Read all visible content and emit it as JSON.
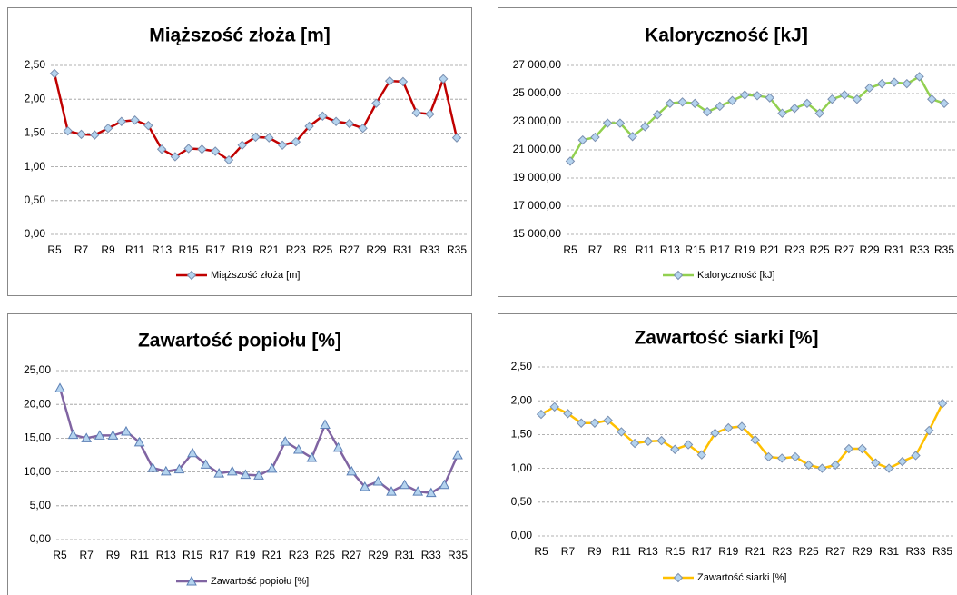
{
  "chart_data": [
    {
      "type": "line",
      "title": "Miąższość złoża [m]",
      "marker": "diamond",
      "categories": [
        "R5",
        null,
        "R7",
        null,
        "R9",
        null,
        "R11",
        null,
        "R13",
        null,
        "R15",
        null,
        "R17",
        null,
        "R19",
        null,
        "R21",
        null,
        "R23",
        null,
        "R25",
        null,
        "R27",
        null,
        "R29",
        null,
        "R31",
        null,
        "R33",
        null,
        "R35"
      ],
      "series": [
        {
          "name": "Miąższość złoża [m]",
          "color": "#c00000",
          "values": [
            2.38,
            1.53,
            1.48,
            1.47,
            1.57,
            1.67,
            1.69,
            1.61,
            1.26,
            1.15,
            1.27,
            1.26,
            1.23,
            1.1,
            1.32,
            1.44,
            1.43,
            1.32,
            1.37,
            1.6,
            1.75,
            1.67,
            1.64,
            1.57,
            1.94,
            2.27,
            2.26,
            1.8,
            1.78,
            2.3,
            1.43
          ]
        }
      ],
      "ylim": [
        0,
        2.5
      ],
      "yticks": [
        {
          "value": 0,
          "label": "0,00"
        },
        {
          "value": 0.5,
          "label": "0,50"
        },
        {
          "value": 1,
          "label": "1,00"
        },
        {
          "value": 1.5,
          "label": "1,50"
        },
        {
          "value": 2,
          "label": "2,00"
        },
        {
          "value": 2.5,
          "label": "2,50"
        }
      ],
      "grid": true
    },
    {
      "type": "line",
      "title": "Kaloryczność [kJ]",
      "marker": "diamond",
      "categories": [
        "R5",
        null,
        "R7",
        null,
        "R9",
        null,
        "R11",
        null,
        "R13",
        null,
        "R15",
        null,
        "R17",
        null,
        "R19",
        null,
        "R21",
        null,
        "R23",
        null,
        "R25",
        null,
        "R27",
        null,
        "R29",
        null,
        "R31",
        null,
        "R33",
        null,
        "R35"
      ],
      "series": [
        {
          "name": "Kaloryczność [kJ]",
          "color": "#92d050",
          "values": [
            20200,
            21700,
            21900,
            22900,
            22900,
            21950,
            22650,
            23500,
            24300,
            24400,
            24300,
            23700,
            24100,
            24500,
            24900,
            24850,
            24700,
            23600,
            23950,
            24300,
            23600,
            24600,
            24900,
            24600,
            25400,
            25700,
            25800,
            25700,
            26200,
            24600,
            24300
          ]
        }
      ],
      "ylim": [
        15000,
        27000
      ],
      "yticks": [
        {
          "value": 15000,
          "label": "15 000,00"
        },
        {
          "value": 17000,
          "label": "17 000,00"
        },
        {
          "value": 19000,
          "label": "19 000,00"
        },
        {
          "value": 21000,
          "label": "21 000,00"
        },
        {
          "value": 23000,
          "label": "23 000,00"
        },
        {
          "value": 25000,
          "label": "25 000,00"
        },
        {
          "value": 27000,
          "label": "27 000,00"
        }
      ],
      "grid": true
    },
    {
      "type": "line",
      "title": "Zawartość popiołu [%]",
      "marker": "triangle",
      "categories": [
        "R5",
        null,
        "R7",
        null,
        "R9",
        null,
        "R11",
        null,
        "R13",
        null,
        "R15",
        null,
        "R17",
        null,
        "R19",
        null,
        "R21",
        null,
        "R23",
        null,
        "R25",
        null,
        "R27",
        null,
        "R29",
        null,
        "R31",
        null,
        "R33",
        null,
        "R35"
      ],
      "series": [
        {
          "name": "Zawartość popiołu [%]",
          "color": "#8064a2",
          "values": [
            22.4,
            15.5,
            15.0,
            15.4,
            15.4,
            16.0,
            14.4,
            10.6,
            10.1,
            10.4,
            12.8,
            11.1,
            9.8,
            10.1,
            9.6,
            9.5,
            10.5,
            14.5,
            13.3,
            12.1,
            17.0,
            13.6,
            10.1,
            7.8,
            8.6,
            7.1,
            8.1,
            7.1,
            6.9,
            8.1,
            12.5
          ]
        }
      ],
      "ylim": [
        0,
        25
      ],
      "yticks": [
        {
          "value": 0,
          "label": "0,00"
        },
        {
          "value": 5,
          "label": "5,00"
        },
        {
          "value": 10,
          "label": "10,00"
        },
        {
          "value": 15,
          "label": "15,00"
        },
        {
          "value": 20,
          "label": "20,00"
        },
        {
          "value": 25,
          "label": "25,00"
        }
      ],
      "grid": true
    },
    {
      "type": "line",
      "title": "Zawartość siarki [%]",
      "marker": "diamond",
      "categories": [
        "R5",
        null,
        "R7",
        null,
        "R9",
        null,
        "R11",
        null,
        "R13",
        null,
        "R15",
        null,
        "R17",
        null,
        "R19",
        null,
        "R21",
        null,
        "R23",
        null,
        "R25",
        null,
        "R27",
        null,
        "R29",
        null,
        "R31",
        null,
        "R33",
        null,
        "R35"
      ],
      "series": [
        {
          "name": "Zawartość siarki [%]",
          "color": "#ffc000",
          "values": [
            1.8,
            1.91,
            1.81,
            1.67,
            1.67,
            1.71,
            1.54,
            1.37,
            1.4,
            1.41,
            1.28,
            1.35,
            1.2,
            1.52,
            1.6,
            1.62,
            1.42,
            1.17,
            1.15,
            1.17,
            1.05,
            1.0,
            1.05,
            1.29,
            1.29,
            1.08,
            1.0,
            1.1,
            1.19,
            1.56,
            1.96
          ]
        }
      ],
      "ylim": [
        0,
        2.5
      ],
      "yticks": [
        {
          "value": 0,
          "label": "0,00"
        },
        {
          "value": 0.5,
          "label": "0,50"
        },
        {
          "value": 1,
          "label": "1,00"
        },
        {
          "value": 1.5,
          "label": "1,50"
        },
        {
          "value": 2,
          "label": "2,00"
        },
        {
          "value": 2.5,
          "label": "2,50"
        }
      ],
      "grid": true
    }
  ]
}
